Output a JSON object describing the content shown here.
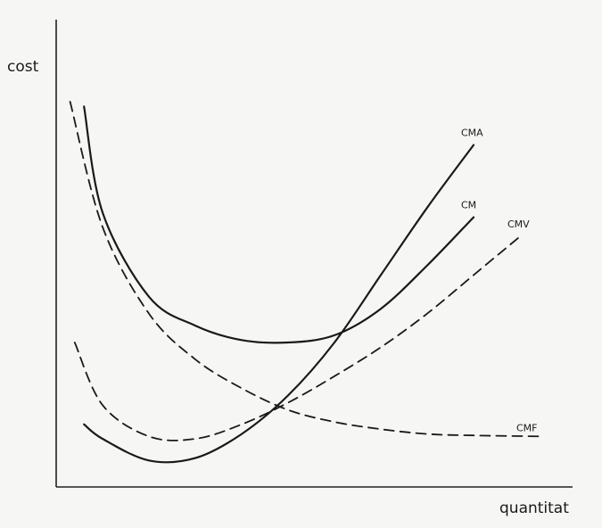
{
  "chart_data": {
    "type": "line",
    "title": "",
    "xlabel": "quantitat",
    "ylabel": "cost",
    "grid": false,
    "legend": "inline curve labels",
    "x_ticks": [],
    "y_ticks": [],
    "series": [
      {
        "name": "CM",
        "style": "solid",
        "x": [
          0.6,
          1,
          2,
          3,
          4,
          5,
          6,
          7,
          8,
          9
        ],
        "y": [
          7.9,
          5.7,
          3.95,
          3.35,
          3.05,
          3.0,
          3.15,
          3.7,
          4.6,
          5.6
        ]
      },
      {
        "name": "CMA",
        "style": "solid",
        "x": [
          0.6,
          1,
          2,
          3,
          4,
          5,
          6,
          7,
          8,
          9
        ],
        "y": [
          1.3,
          1.0,
          0.55,
          0.6,
          1.1,
          1.9,
          3.0,
          4.4,
          5.8,
          7.1
        ]
      },
      {
        "name": "CMV",
        "style": "dashed",
        "x": [
          0.4,
          1,
          2,
          3,
          4,
          5,
          6,
          7,
          8,
          9,
          10
        ],
        "y": [
          3.0,
          1.7,
          1.05,
          1.0,
          1.3,
          1.75,
          2.3,
          2.9,
          3.6,
          4.4,
          5.2
        ]
      },
      {
        "name": "CMF",
        "style": "dashed",
        "x": [
          0.3,
          1,
          2,
          3,
          4,
          5,
          6,
          7,
          8,
          9,
          10.5
        ],
        "y": [
          8.0,
          5.4,
          3.6,
          2.65,
          2.05,
          1.6,
          1.35,
          1.2,
          1.1,
          1.07,
          1.05
        ]
      }
    ]
  }
}
